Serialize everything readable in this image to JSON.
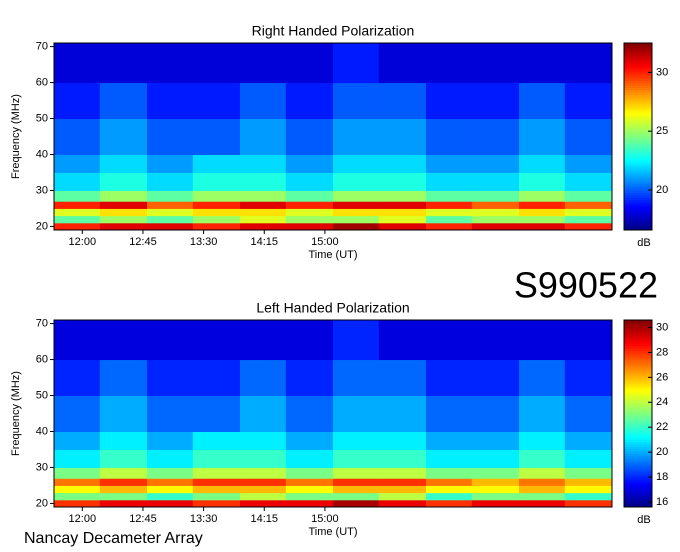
{
  "label": "S990522",
  "footer": "Nancay Decameter Array",
  "chart_data": [
    {
      "type": "heatmap",
      "title": "Right Handed Polarization",
      "xlabel": "Time (UT)",
      "ylabel": "Frequency (MHz)",
      "colormap": "jet",
      "xlim": [
        699,
        1113
      ],
      "ylim": [
        19,
        71
      ],
      "xticks": [
        {
          "value": 720,
          "label": "12:00"
        },
        {
          "value": 765,
          "label": "12:45"
        },
        {
          "value": 810,
          "label": "13:30"
        },
        {
          "value": 855,
          "label": "14:15"
        },
        {
          "value": 900,
          "label": "15:00"
        }
      ],
      "yticks": [
        20,
        30,
        40,
        50,
        60,
        70
      ],
      "x_bins": [
        699,
        733,
        768,
        802,
        837,
        871,
        906,
        940,
        975,
        1009,
        1044,
        1078,
        1113
      ],
      "y_bins": [
        19,
        21,
        23,
        25,
        27,
        30,
        35,
        40,
        50,
        60,
        71
      ],
      "z": [
        [
          30,
          31,
          31,
          30,
          31,
          31,
          32,
          31,
          30,
          31,
          31,
          30
        ],
        [
          24,
          25,
          24,
          25,
          26,
          25,
          25,
          26,
          24,
          25,
          25,
          24
        ],
        [
          26,
          27,
          26,
          27,
          27,
          26,
          27,
          27,
          26,
          26,
          27,
          26
        ],
        [
          30,
          31,
          29,
          30,
          31,
          30,
          31,
          31,
          30,
          29,
          30,
          29
        ],
        [
          24,
          25,
          24,
          25,
          25,
          24,
          25,
          25,
          24,
          24,
          25,
          24
        ],
        [
          22,
          23,
          22,
          23,
          23,
          22,
          23,
          23,
          22,
          22,
          23,
          22
        ],
        [
          21,
          22,
          21,
          22,
          22,
          21,
          22,
          22,
          21,
          21,
          22,
          21
        ],
        [
          20,
          21,
          20,
          20,
          21,
          20,
          21,
          21,
          20,
          20,
          21,
          20
        ],
        [
          19,
          20,
          19,
          19,
          20,
          19,
          20,
          20,
          19,
          19,
          20,
          19
        ],
        [
          18,
          18,
          18,
          18,
          18,
          18,
          19,
          18,
          18,
          18,
          18,
          18
        ]
      ],
      "colorbar": {
        "label": "dB",
        "lim": [
          16.6,
          32.5
        ],
        "ticks": [
          20,
          25,
          30
        ]
      }
    },
    {
      "type": "heatmap",
      "title": "Left Handed Polarization",
      "xlabel": "Time (UT)",
      "ylabel": "Frequency (MHz)",
      "colormap": "jet",
      "xlim": [
        699,
        1113
      ],
      "ylim": [
        19,
        71
      ],
      "xticks": [
        {
          "value": 720,
          "label": "12:00"
        },
        {
          "value": 765,
          "label": "12:45"
        },
        {
          "value": 810,
          "label": "13:30"
        },
        {
          "value": 855,
          "label": "14:15"
        },
        {
          "value": 900,
          "label": "15:00"
        }
      ],
      "yticks": [
        20,
        30,
        40,
        50,
        60,
        70
      ],
      "x_bins": [
        699,
        733,
        768,
        802,
        837,
        871,
        906,
        940,
        975,
        1009,
        1044,
        1078,
        1113
      ],
      "y_bins": [
        19,
        21,
        23,
        25,
        27,
        30,
        35,
        40,
        50,
        60,
        71
      ],
      "z": [
        [
          28,
          29,
          29,
          28,
          29,
          29,
          30,
          29,
          28,
          29,
          29,
          28
        ],
        [
          23,
          23,
          22,
          23,
          24,
          23,
          23,
          24,
          22,
          23,
          23,
          22
        ],
        [
          25,
          26,
          25,
          26,
          26,
          25,
          26,
          26,
          25,
          25,
          26,
          25
        ],
        [
          27,
          28,
          27,
          28,
          28,
          27,
          28,
          28,
          27,
          26,
          27,
          26
        ],
        [
          23,
          24,
          23,
          24,
          24,
          23,
          24,
          24,
          23,
          23,
          24,
          23
        ],
        [
          21,
          22,
          21,
          22,
          22,
          21,
          22,
          22,
          21,
          21,
          22,
          21
        ],
        [
          20,
          21,
          20,
          21,
          21,
          20,
          21,
          21,
          20,
          20,
          21,
          20
        ],
        [
          19,
          20,
          19,
          19,
          20,
          19,
          20,
          20,
          19,
          19,
          20,
          19
        ],
        [
          18,
          19,
          18,
          18,
          19,
          18,
          19,
          19,
          18,
          18,
          19,
          18
        ],
        [
          17,
          17,
          17,
          17,
          17,
          17,
          18,
          17,
          17,
          17,
          17,
          17
        ]
      ],
      "colorbar": {
        "label": "dB",
        "lim": [
          15.6,
          30.6
        ],
        "ticks": [
          16,
          18,
          20,
          22,
          24,
          26,
          28,
          30
        ]
      }
    }
  ]
}
